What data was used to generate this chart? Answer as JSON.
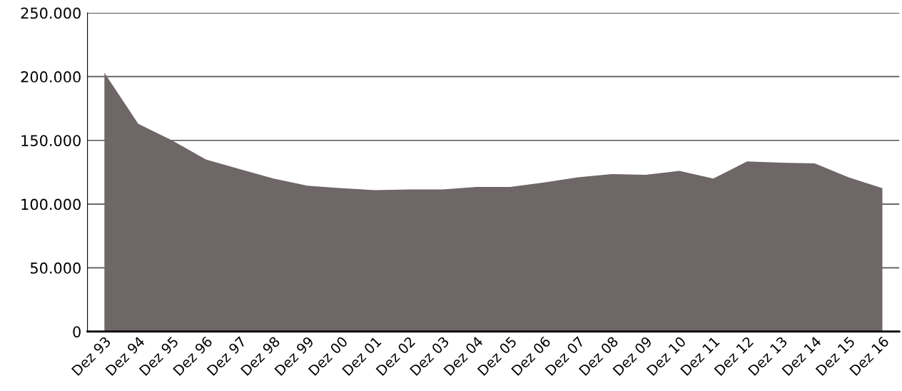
{
  "chart_data": {
    "type": "area",
    "categories": [
      "Dez 93",
      "Dez 94",
      "Dez 95",
      "Dez 96",
      "Dez 97",
      "Dez 98",
      "Dez 99",
      "Dez 00",
      "Dez 01",
      "Dez 02",
      "Dez 03",
      "Dez 04",
      "Dez 05",
      "Dez 06",
      "Dez 07",
      "Dez 08",
      "Dez 09",
      "Dez 10",
      "Dez 11",
      "Dez 12",
      "Dez 13",
      "Dez 14",
      "Dez 15",
      "Dez 16"
    ],
    "series": [
      {
        "color": "#6f6667",
        "values": [
          203000,
          163000,
          150000,
          135000,
          127500,
          120000,
          114500,
          112500,
          111000,
          111500,
          111500,
          113500,
          113500,
          117000,
          121000,
          123500,
          123000,
          126000,
          120000,
          133500,
          132500,
          132000,
          121000,
          112500
        ]
      }
    ],
    "ylim": [
      0,
      250000
    ],
    "yticks": [
      {
        "value": 0,
        "label": "0"
      },
      {
        "value": 50000,
        "label": "50.000"
      },
      {
        "value": 100000,
        "label": "100.000"
      },
      {
        "value": 150000,
        "label": "150.000"
      },
      {
        "value": 200000,
        "label": "200.000"
      },
      {
        "value": 250000,
        "label": "250.000"
      }
    ],
    "grid": "y",
    "legend": false
  }
}
